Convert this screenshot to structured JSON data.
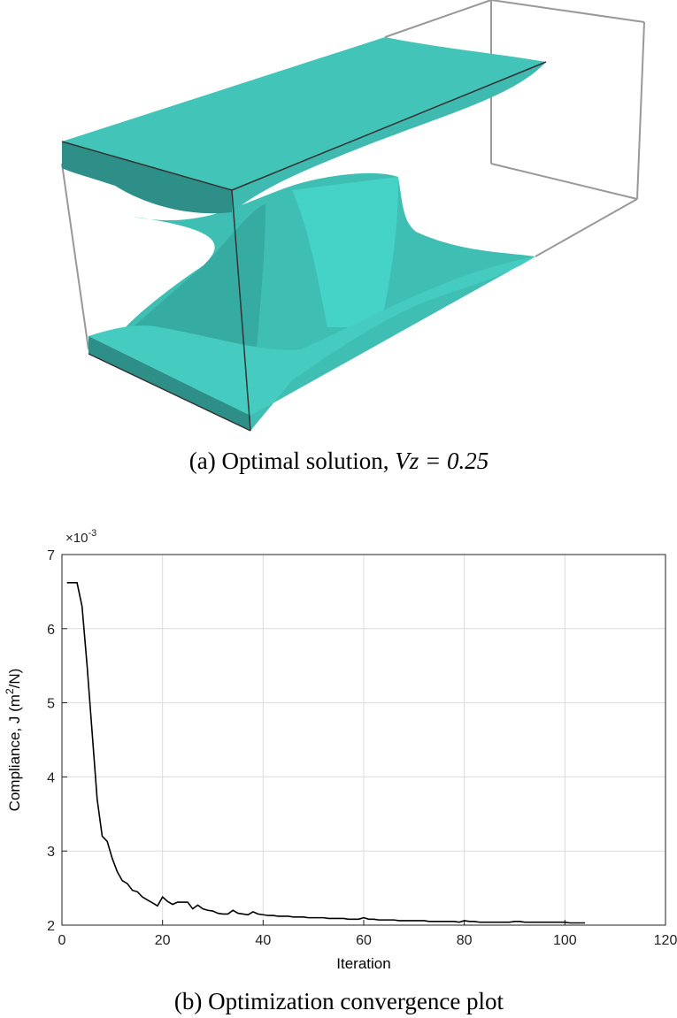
{
  "figure_a": {
    "caption": "(a) Optimal solution, ",
    "caption_math": "Vz = 0.25"
  },
  "chart_data": {
    "type": "line",
    "caption": "(b) Optimization convergence plot",
    "xlabel": "Iteration",
    "ylabel": [
      "Compliance, J (m",
      "2",
      "/N)"
    ],
    "y_multiplier": {
      "base": "×10",
      "exponent": "-3"
    },
    "color": "#000000",
    "grid": true,
    "xlim": [
      0,
      120
    ],
    "xticks": [
      0,
      20,
      40,
      60,
      80,
      100,
      120
    ],
    "ylim": [
      2,
      7
    ],
    "yticks": [
      2,
      3,
      4,
      5,
      6,
      7
    ],
    "x": [
      1,
      2,
      3,
      4,
      5,
      6,
      7,
      8,
      9,
      10,
      11,
      12,
      13,
      14,
      15,
      16,
      17,
      18,
      19,
      20,
      21,
      22,
      23,
      24,
      25,
      26,
      27,
      28,
      29,
      30,
      31,
      32,
      33,
      34,
      35,
      36,
      37,
      38,
      39,
      40,
      41,
      42,
      43,
      44,
      45,
      46,
      47,
      48,
      49,
      50,
      51,
      52,
      53,
      54,
      55,
      56,
      57,
      58,
      59,
      60,
      61,
      62,
      63,
      64,
      65,
      66,
      67,
      68,
      69,
      70,
      71,
      72,
      73,
      74,
      75,
      76,
      77,
      78,
      79,
      80,
      81,
      82,
      83,
      84,
      85,
      86,
      87,
      88,
      89,
      90,
      91,
      92,
      93,
      94,
      95,
      96,
      97,
      98,
      99,
      100,
      101,
      102,
      103,
      104
    ],
    "values": [
      6.62,
      6.62,
      6.62,
      6.3,
      5.5,
      4.6,
      3.7,
      3.2,
      3.13,
      2.9,
      2.72,
      2.6,
      2.56,
      2.47,
      2.45,
      2.38,
      2.34,
      2.3,
      2.26,
      2.38,
      2.32,
      2.28,
      2.31,
      2.31,
      2.31,
      2.22,
      2.27,
      2.22,
      2.2,
      2.19,
      2.16,
      2.15,
      2.15,
      2.2,
      2.16,
      2.15,
      2.14,
      2.18,
      2.15,
      2.14,
      2.13,
      2.13,
      2.12,
      2.12,
      2.12,
      2.11,
      2.11,
      2.11,
      2.1,
      2.1,
      2.1,
      2.1,
      2.09,
      2.09,
      2.09,
      2.09,
      2.08,
      2.08,
      2.08,
      2.1,
      2.08,
      2.08,
      2.07,
      2.07,
      2.07,
      2.07,
      2.06,
      2.06,
      2.06,
      2.06,
      2.06,
      2.06,
      2.05,
      2.05,
      2.05,
      2.05,
      2.05,
      2.05,
      2.04,
      2.06,
      2.05,
      2.05,
      2.04,
      2.04,
      2.04,
      2.04,
      2.04,
      2.04,
      2.04,
      2.05,
      2.05,
      2.04,
      2.04,
      2.04,
      2.04,
      2.04,
      2.04,
      2.04,
      2.04,
      2.04,
      2.03,
      2.03,
      2.03,
      2.03
    ]
  }
}
